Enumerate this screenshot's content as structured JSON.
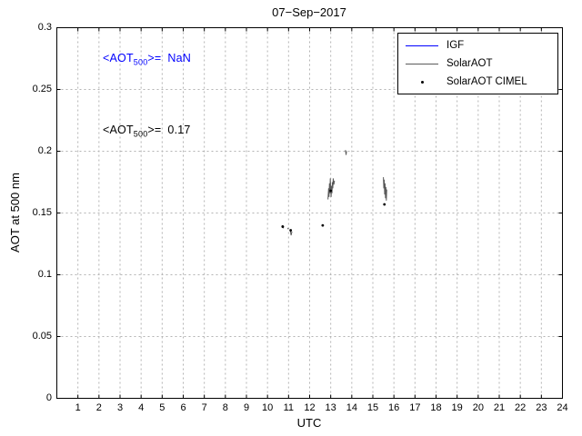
{
  "title": "07−Sep−2017",
  "axes": {
    "xlabel": "UTC",
    "ylabel": "AOT at 500 nm"
  },
  "annotations": {
    "nan": {
      "pre": "<AOT",
      "sub": "500",
      "eq": ">=",
      "value": "NaN",
      "color": "#0000ff"
    },
    "mean": {
      "pre": "<AOT",
      "sub": "500",
      "eq": ">=",
      "value": "0.17",
      "color": "#000000"
    }
  },
  "chart_data": {
    "type": "line",
    "title": "07−Sep−2017",
    "xlabel": "UTC",
    "ylabel": "AOT at 500 nm",
    "xlim": [
      0,
      24
    ],
    "ylim": [
      0,
      0.3
    ],
    "x_ticks": [
      1,
      2,
      3,
      4,
      5,
      6,
      7,
      8,
      9,
      10,
      11,
      12,
      13,
      14,
      15,
      16,
      17,
      18,
      19,
      20,
      21,
      22,
      23,
      24
    ],
    "y_ticks": [
      0,
      0.05,
      0.1,
      0.15,
      0.2,
      0.25,
      0.3
    ],
    "y_tick_labels": [
      "0",
      "0.05",
      "0.1",
      "0.15",
      "0.2",
      "0.25",
      "0.3"
    ],
    "grid": true,
    "grid_color": "#b3b3b3",
    "axis_color": "#000000",
    "legend_position": "top-right",
    "series": [
      {
        "name": "IGF",
        "type": "line",
        "color": "#0000ff",
        "segments": []
      },
      {
        "name": "SolarAOT",
        "type": "line",
        "color": "#5a5a5a",
        "segments": [
          [
            [
              10.7,
              0.14
            ],
            [
              10.74,
              0.138
            ],
            [
              10.78,
              0.139
            ]
          ],
          [
            [
              10.95,
              0.137
            ],
            [
              11.0,
              0.138
            ]
          ],
          [
            [
              11.08,
              0.136
            ],
            [
              11.12,
              0.132
            ],
            [
              11.16,
              0.135
            ]
          ],
          [
            [
              12.87,
              0.161
            ],
            [
              12.9,
              0.17
            ],
            [
              12.92,
              0.163
            ],
            [
              12.94,
              0.174
            ],
            [
              12.96,
              0.166
            ],
            [
              12.98,
              0.178
            ],
            [
              13.0,
              0.168
            ],
            [
              13.02,
              0.163
            ],
            [
              13.04,
              0.172
            ],
            [
              13.06,
              0.166
            ],
            [
              13.08,
              0.175
            ],
            [
              13.1,
              0.17
            ],
            [
              13.12,
              0.178
            ],
            [
              13.15,
              0.173
            ],
            [
              13.18,
              0.176
            ]
          ],
          [
            [
              13.7,
              0.201
            ],
            [
              13.73,
              0.197
            ],
            [
              13.75,
              0.2
            ]
          ],
          [
            [
              15.5,
              0.179
            ],
            [
              15.52,
              0.17
            ],
            [
              15.54,
              0.177
            ],
            [
              15.56,
              0.165
            ],
            [
              15.58,
              0.174
            ],
            [
              15.6,
              0.162
            ],
            [
              15.62,
              0.171
            ],
            [
              15.64,
              0.16
            ],
            [
              15.66,
              0.169
            ]
          ]
        ]
      },
      {
        "name": "SolarAOT CIMEL",
        "type": "scatter",
        "color": "#000000",
        "points": [
          [
            10.72,
            0.139
          ],
          [
            11.1,
            0.136
          ],
          [
            12.62,
            0.14
          ],
          [
            13.0,
            0.168
          ],
          [
            15.55,
            0.157
          ]
        ]
      }
    ],
    "annotations": [
      {
        "text": "<AOT_500>= NaN",
        "x": 2.3,
        "y": 0.268,
        "color": "#0000ff"
      },
      {
        "text": "<AOT_500>= 0.17",
        "x": 2.3,
        "y": 0.208,
        "color": "#000000"
      }
    ]
  }
}
